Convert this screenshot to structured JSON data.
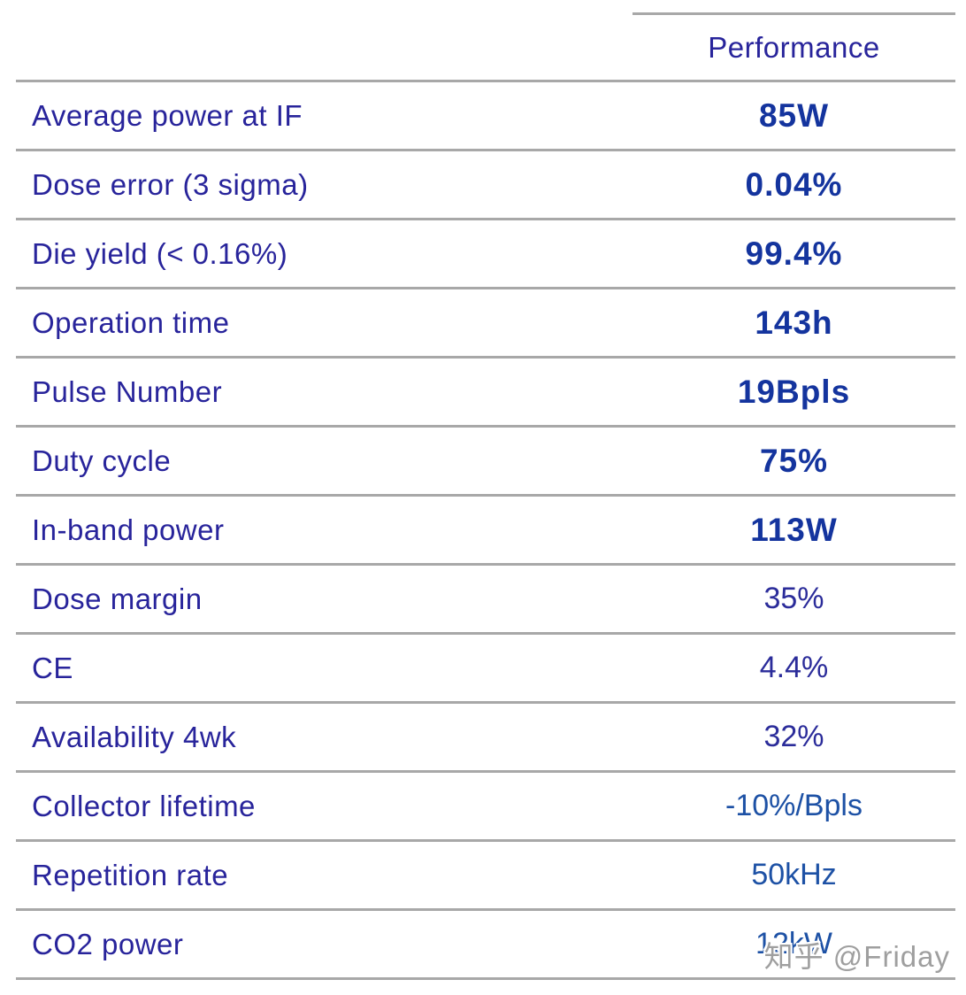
{
  "chart_data": {
    "type": "table",
    "columns": [
      "",
      "Performance"
    ],
    "rows": [
      {
        "label": "Average power at IF",
        "value": "85W",
        "bold": true
      },
      {
        "label": "Dose error (3 sigma)",
        "value": "0.04%",
        "bold": true
      },
      {
        "label": "Die yield (< 0.16%)",
        "value": "99.4%",
        "bold": true
      },
      {
        "label": "Operation time",
        "value": "143h",
        "bold": true
      },
      {
        "label": "Pulse Number",
        "value": "19Bpls",
        "bold": true
      },
      {
        "label": "Duty cycle",
        "value": "75%",
        "bold": true
      },
      {
        "label": "In-band power",
        "value": "113W",
        "bold": true
      },
      {
        "label": "Dose margin",
        "value": "35%",
        "bold": false
      },
      {
        "label": "CE",
        "value": "4.4%",
        "bold": false
      },
      {
        "label": "Availability 4wk",
        "value": "32%",
        "bold": false
      },
      {
        "label": "Collector lifetime",
        "value": "-10%/Bpls",
        "bold": false
      },
      {
        "label": "Repetition rate",
        "value": "50kHz",
        "bold": false
      },
      {
        "label": "CO2 power",
        "value": "12kW",
        "bold": false
      }
    ]
  },
  "watermark": {
    "text": "知乎 @Friday"
  },
  "colors": {
    "label_indigo": "#28249b",
    "value_bold_blue": "#14349e",
    "value_indigo": "#2b2c9a",
    "value_blue": "#1d51a5",
    "divider_gray": "#a8a8a8",
    "watermark_gray": "#9f9f9f"
  }
}
